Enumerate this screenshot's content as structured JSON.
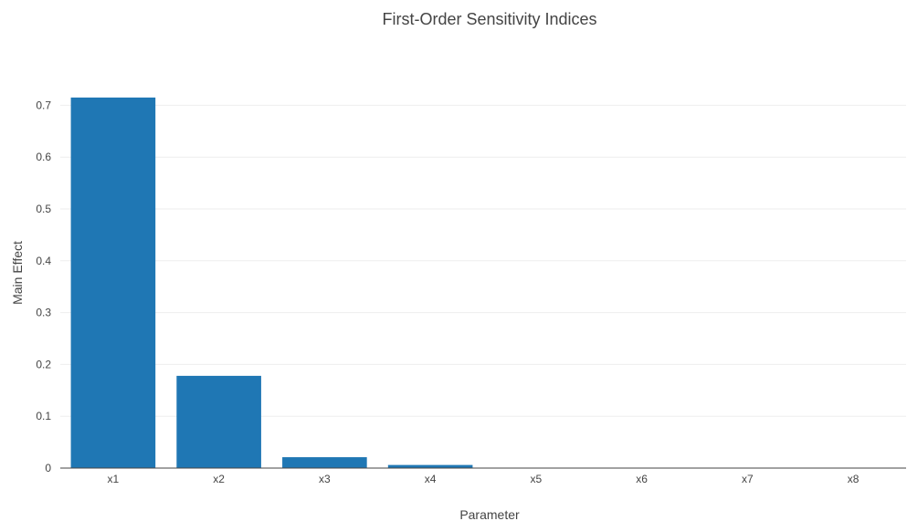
{
  "chart_data": {
    "type": "bar",
    "title": "First-Order Sensitivity Indices",
    "xlabel": "Parameter",
    "ylabel": "Main Effect",
    "categories": [
      "x1",
      "x2",
      "x3",
      "x4",
      "x5",
      "x6",
      "x7",
      "x8"
    ],
    "series": [
      {
        "values": [
          0.715,
          0.178,
          0.021,
          0.006,
          0.0005,
          0.0003,
          0.0002,
          0.0002
        ]
      }
    ],
    "ylim": [
      0,
      0.75
    ],
    "yticks": [
      0,
      0.1,
      0.2,
      0.3,
      0.4,
      0.5,
      0.6,
      0.7
    ],
    "ytick_labels": [
      "0",
      "0.1",
      "0.2",
      "0.3",
      "0.4",
      "0.5",
      "0.6",
      "0.7"
    ],
    "grid": true,
    "bar_color": "#1f77b4"
  }
}
